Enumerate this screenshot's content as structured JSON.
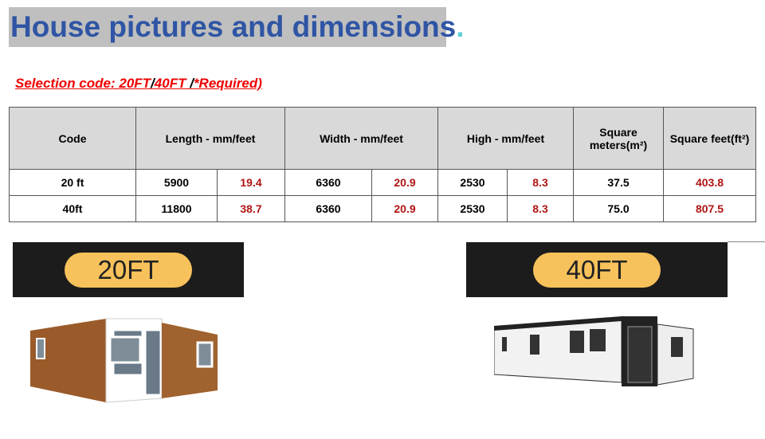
{
  "title": "House pictures and dimensions",
  "title_suffix": ".",
  "selection": {
    "prefix": "Selection code: ",
    "code1": "20FT",
    "sep1": "/",
    "code2": "40FT ",
    "sep2": "/",
    "suffix": "*Required)"
  },
  "table": {
    "headers": [
      "Code",
      "Length - mm/feet",
      "Width - mm/feet",
      "High - mm/feet",
      "Square meters(m²)",
      "Square feet(ft²)"
    ],
    "rows": [
      [
        "20 ft",
        "5900",
        "19.4",
        "6360",
        "20.9",
        "2530",
        "8.3",
        "37.5",
        "403.8"
      ],
      [
        "40ft",
        "11800",
        "38.7",
        "6360",
        "20.9",
        "2530",
        "8.3",
        "75.0",
        "807.5"
      ]
    ]
  },
  "banners": {
    "left": "20FT",
    "right": "40FT"
  },
  "colors": {
    "title": "#2f55a4",
    "title_bg": "#bfbfbf",
    "accent_red": "#b01515",
    "pill": "#f7c25b"
  }
}
